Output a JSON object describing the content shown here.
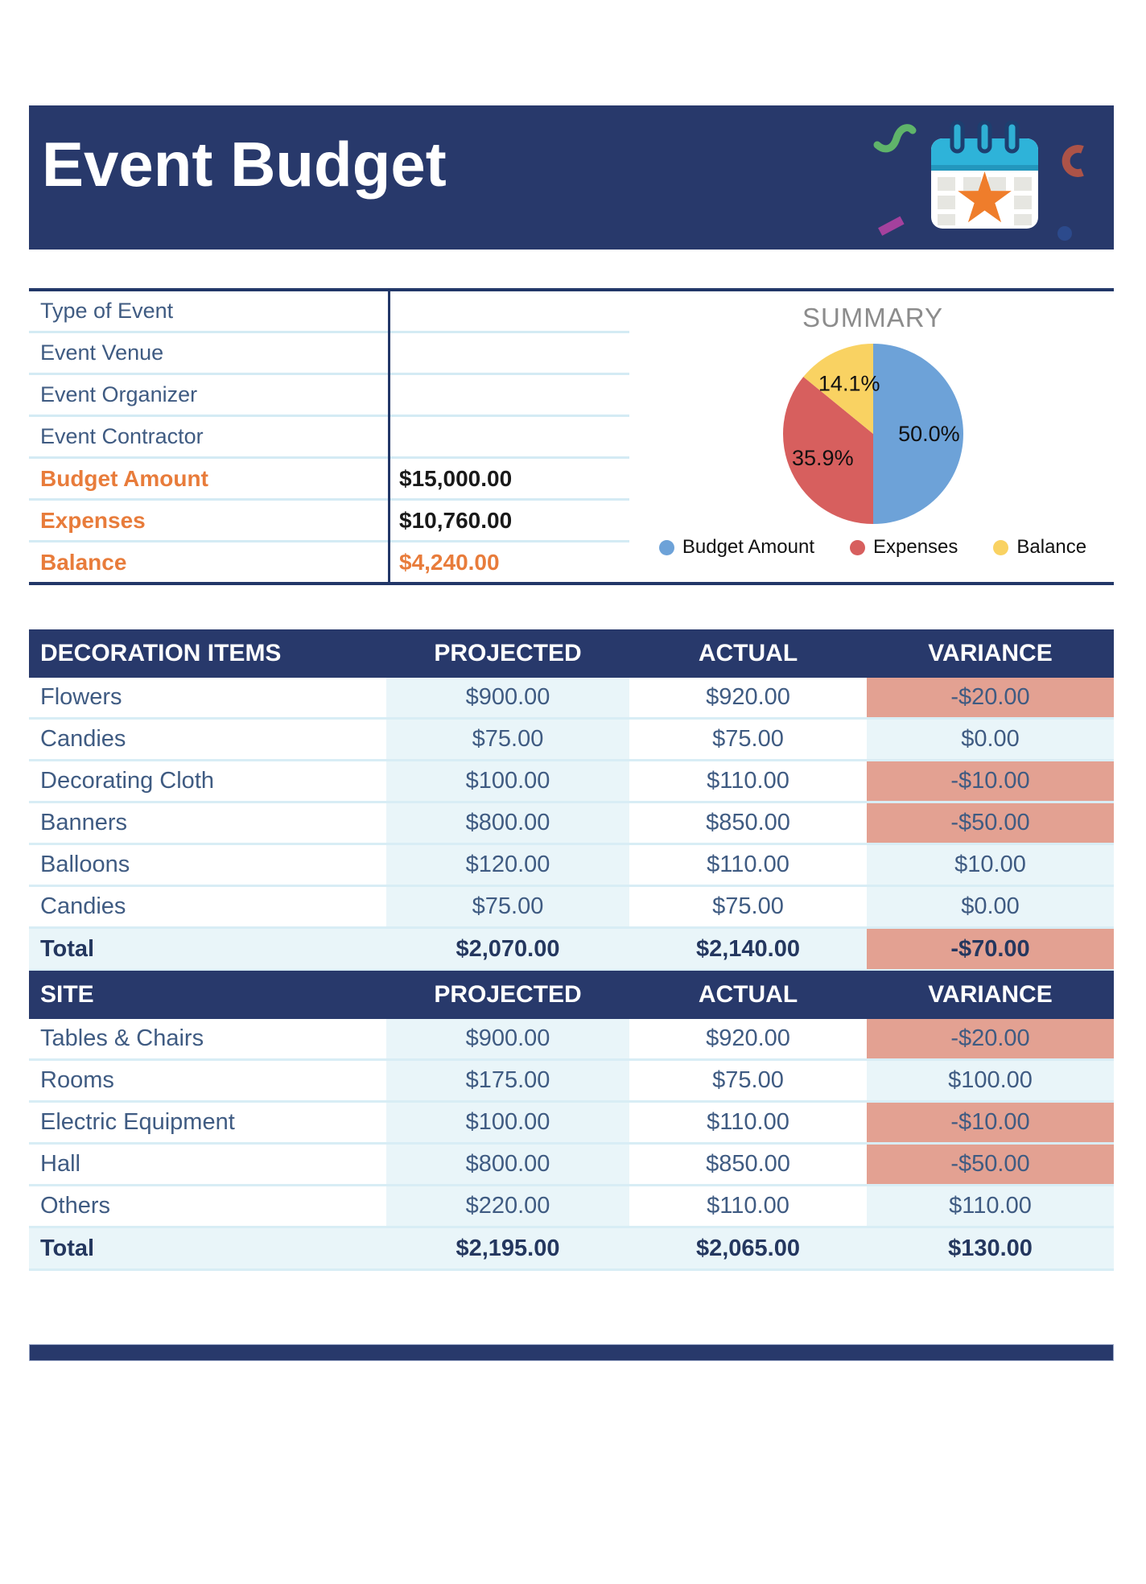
{
  "header": {
    "title": "Event Budget",
    "band_color": "#28396b"
  },
  "info": {
    "rows": [
      {
        "label": "Type of Event",
        "value": "",
        "accent": false,
        "value_accent": false
      },
      {
        "label": "Event Venue",
        "value": "",
        "accent": false,
        "value_accent": false
      },
      {
        "label": "Event Organizer",
        "value": "",
        "accent": false,
        "value_accent": false
      },
      {
        "label": "Event Contractor",
        "value": "",
        "accent": false,
        "value_accent": false
      },
      {
        "label": "Budget Amount",
        "value": "$15,000.00",
        "accent": true,
        "value_accent": false
      },
      {
        "label": "Expenses",
        "value": "$10,760.00",
        "accent": true,
        "value_accent": false
      },
      {
        "label": "Balance",
        "value": "$4,240.00",
        "accent": true,
        "value_accent": true
      }
    ]
  },
  "chart_data": {
    "type": "pie",
    "title": "SUMMARY",
    "title_color": "#8c8c8c",
    "labels": [
      "Budget Amount",
      "Expenses",
      "Balance"
    ],
    "values": [
      50.0,
      35.9,
      14.1
    ],
    "value_labels": [
      "50.0%",
      "35.9%",
      "14.1%"
    ],
    "colors": [
      "#6da2d8",
      "#d75f5e",
      "#f9d262"
    ],
    "legend_position": "bottom",
    "start_angle": "top",
    "direction": "clockwise"
  },
  "tables": [
    {
      "id": "decoration",
      "headers": [
        "DECORATION ITEMS",
        "PROJECTED",
        "ACTUAL",
        "VARIANCE"
      ],
      "rows": [
        {
          "item": "Flowers",
          "projected": "$900.00",
          "actual": "$920.00",
          "variance": "-$20.00",
          "negative": true
        },
        {
          "item": "Candies",
          "projected": "$75.00",
          "actual": "$75.00",
          "variance": "$0.00",
          "negative": false
        },
        {
          "item": "Decorating Cloth",
          "projected": "$100.00",
          "actual": "$110.00",
          "variance": "-$10.00",
          "negative": true
        },
        {
          "item": "Banners",
          "projected": "$800.00",
          "actual": "$850.00",
          "variance": "-$50.00",
          "negative": true
        },
        {
          "item": "Balloons",
          "projected": "$120.00",
          "actual": "$110.00",
          "variance": "$10.00",
          "negative": false
        },
        {
          "item": "Candies",
          "projected": "$75.00",
          "actual": "$75.00",
          "variance": "$0.00",
          "negative": false
        }
      ],
      "total": {
        "item": "Total",
        "projected": "$2,070.00",
        "actual": "$2,140.00",
        "variance": "-$70.00",
        "negative": true
      }
    },
    {
      "id": "site",
      "headers": [
        "SITE",
        "PROJECTED",
        "ACTUAL",
        "VARIANCE"
      ],
      "rows": [
        {
          "item": "Tables & Chairs",
          "projected": "$900.00",
          "actual": "$920.00",
          "variance": "-$20.00",
          "negative": true
        },
        {
          "item": "Rooms",
          "projected": "$175.00",
          "actual": "$75.00",
          "variance": "$100.00",
          "negative": false
        },
        {
          "item": "Electric Equipment",
          "projected": "$100.00",
          "actual": "$110.00",
          "variance": "-$10.00",
          "negative": true
        },
        {
          "item": "Hall",
          "projected": "$800.00",
          "actual": "$850.00",
          "variance": "-$50.00",
          "negative": true
        },
        {
          "item": "Others",
          "projected": "$220.00",
          "actual": "$110.00",
          "variance": "$110.00",
          "negative": false
        }
      ],
      "total": {
        "item": "Total",
        "projected": "$2,195.00",
        "actual": "$2,065.00",
        "variance": "$130.00",
        "negative": false
      }
    }
  ],
  "colors": {
    "navy": "#28396b",
    "accent_orange": "#e87c3b",
    "salmon_negative": "#e3a192",
    "light_blue_cell": "#e9f5f9",
    "separator": "#d8edf5",
    "slate_text": "#3f5b82"
  }
}
